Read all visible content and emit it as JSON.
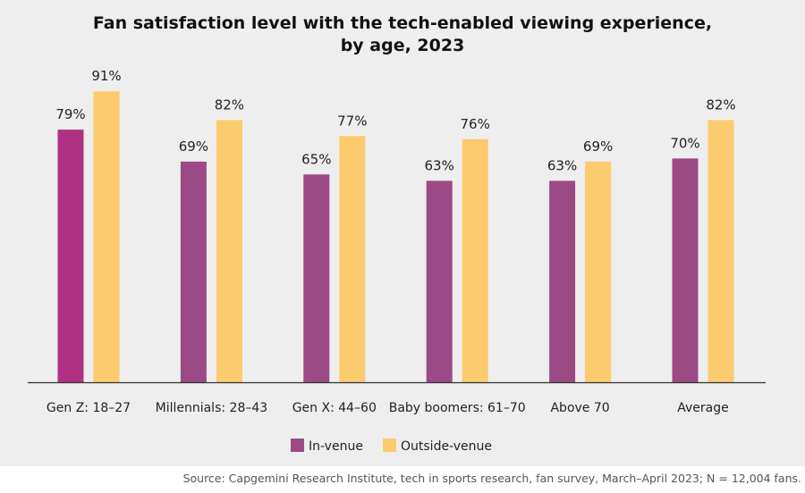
{
  "chart_data": {
    "type": "bar",
    "title_lines": [
      "Fan satisfaction level with the tech-enabled viewing experience,",
      "by age, 2023"
    ],
    "categories": [
      "Gen Z: 18–27",
      "Millennials: 28–43",
      "Gen X: 44–60",
      "Baby boomers: 61–70",
      "Above 70",
      "Average"
    ],
    "series": [
      {
        "name": "In-venue",
        "values": [
          79,
          69,
          65,
          63,
          63,
          70
        ],
        "labels": [
          "79%",
          "69%",
          "65%",
          "63%",
          "63%",
          "70%"
        ]
      },
      {
        "name": "Outside-venue",
        "values": [
          91,
          82,
          77,
          76,
          69,
          82
        ],
        "labels": [
          "91%",
          "82%",
          "77%",
          "76%",
          "69%",
          "82%"
        ]
      }
    ],
    "ylim": [
      0,
      100
    ],
    "xlabel": "",
    "ylabel": "",
    "grid": false,
    "legend_position": "bottom-center"
  },
  "colors": {
    "in_venue_highlight": "#b03082",
    "in_venue": "#9b4a85",
    "outside_venue": "#fccb6e",
    "axis": "#333333"
  },
  "source": "Source: Capgemini Research Institute, tech in sports research, fan survey, March–April 2023; N = 12,004 fans."
}
